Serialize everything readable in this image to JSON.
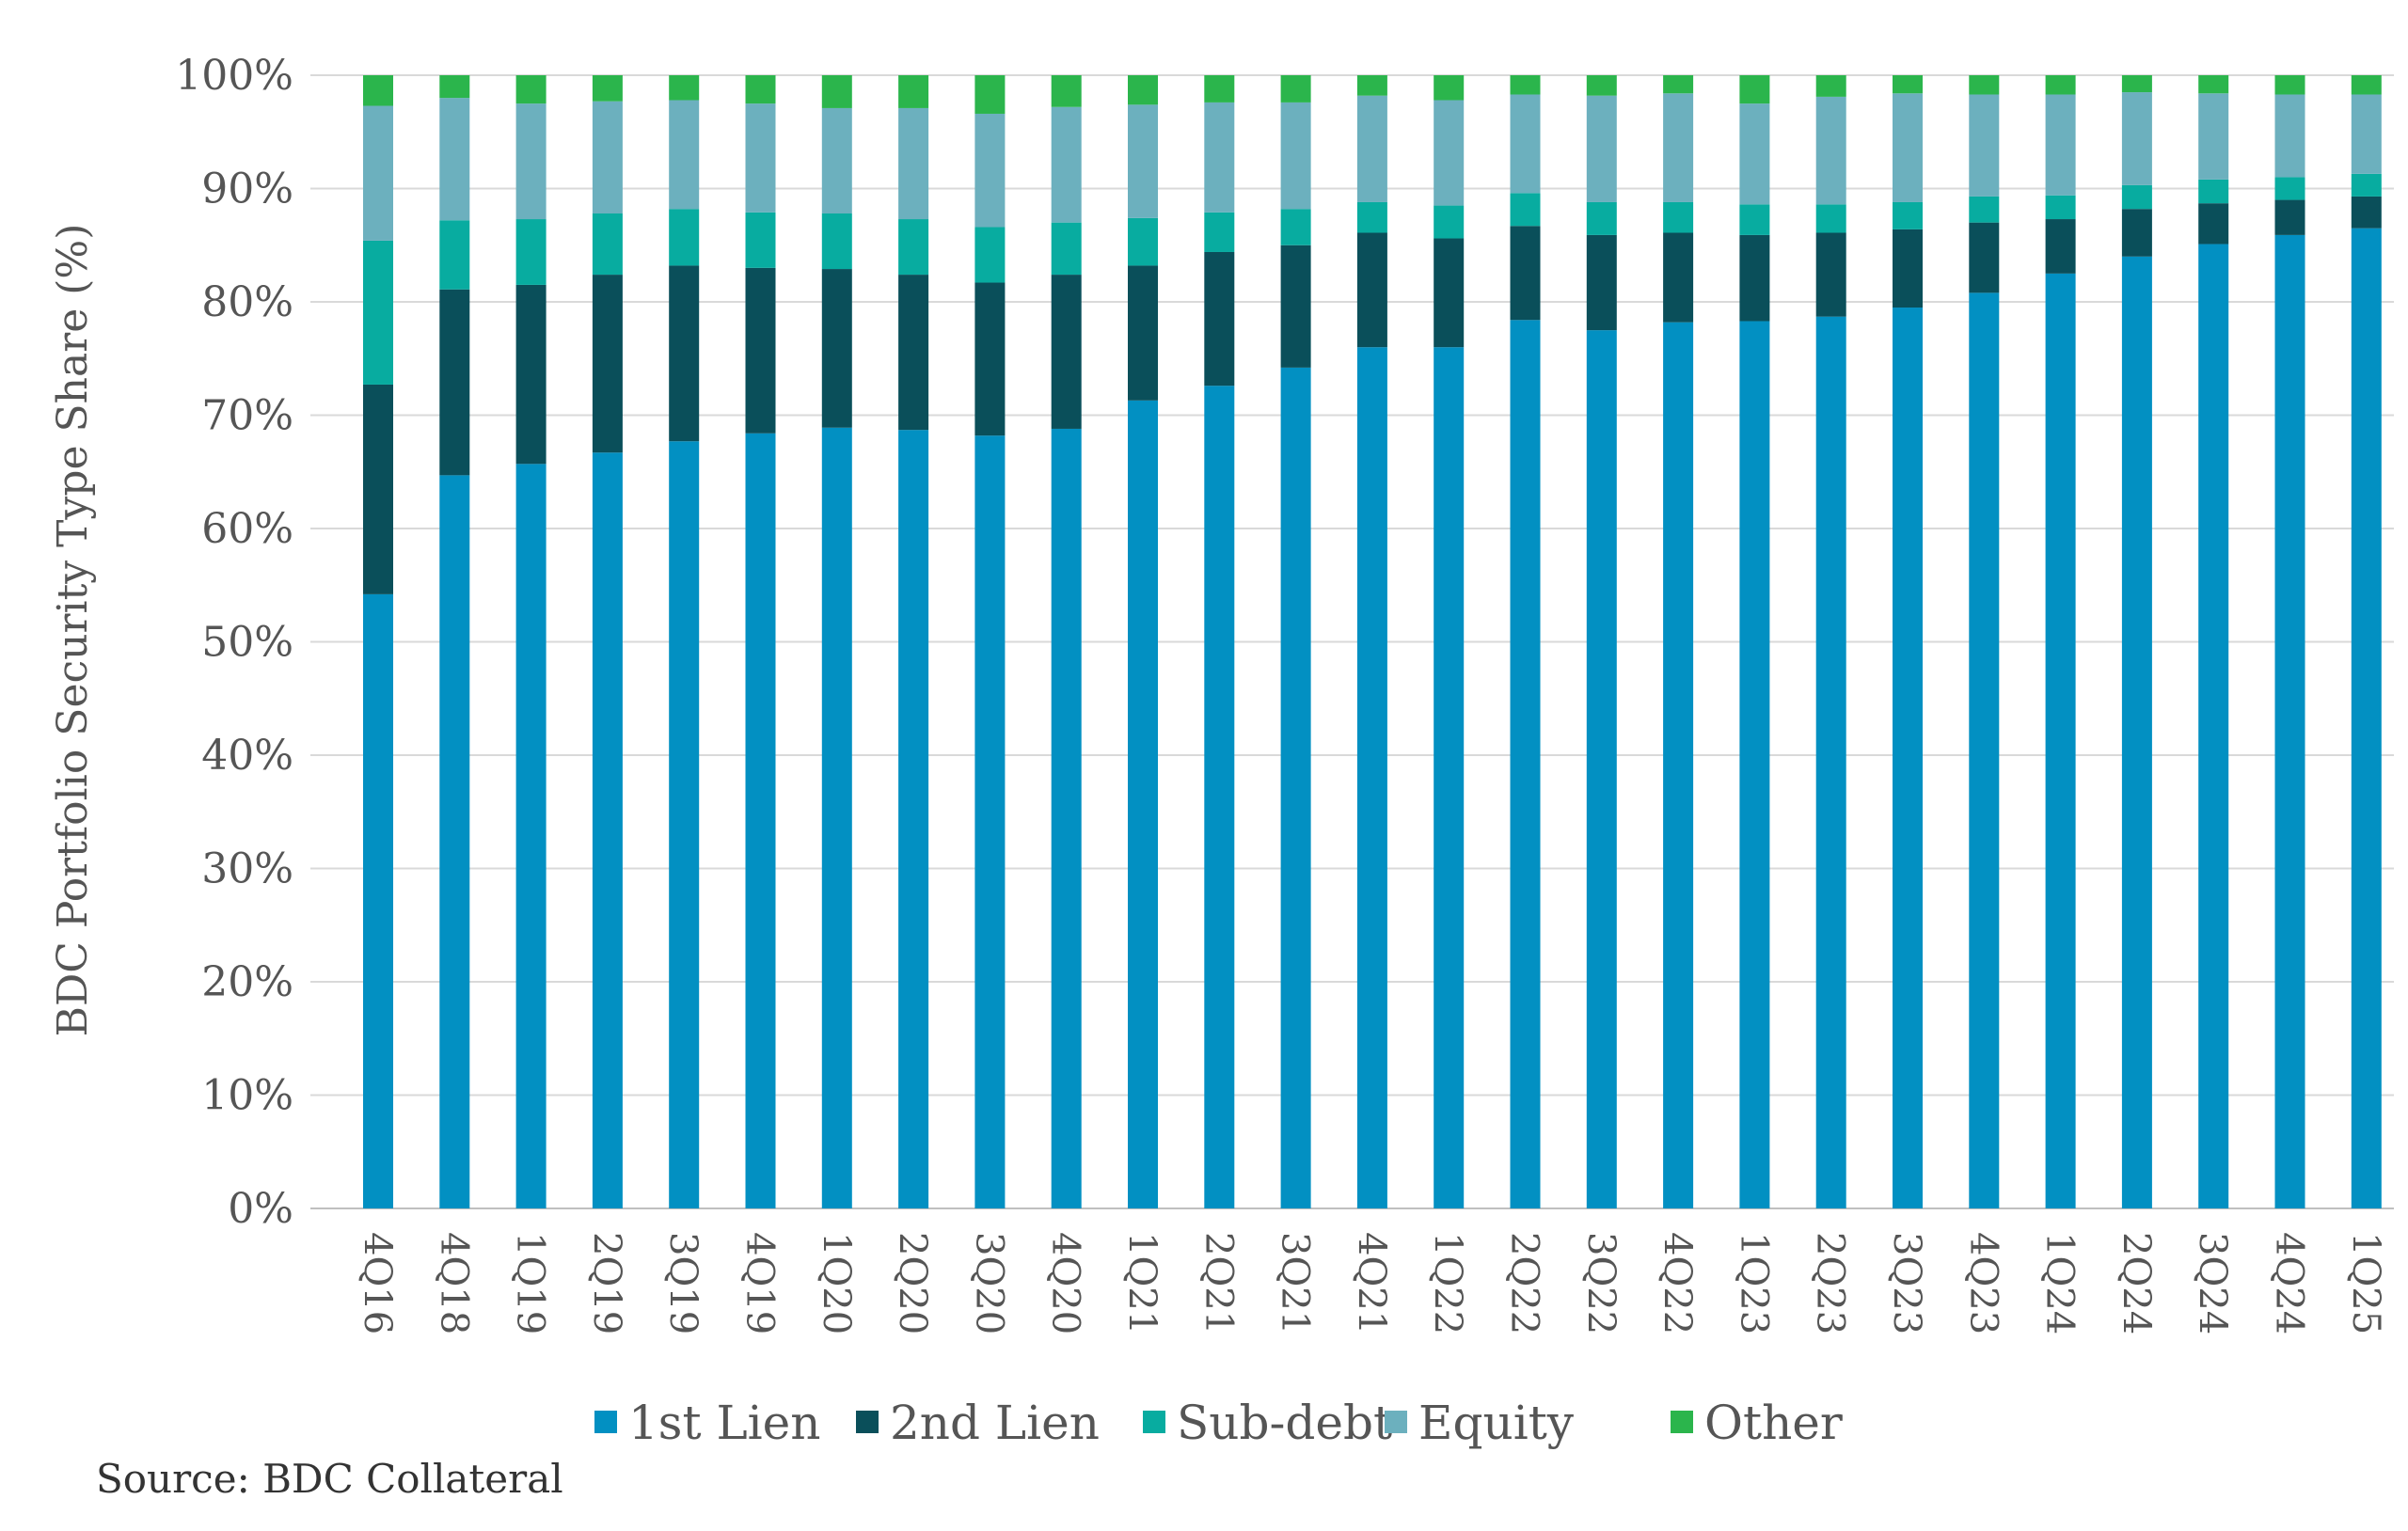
{
  "chart_data": {
    "type": "bar",
    "stacked": true,
    "title": "",
    "xlabel": "",
    "ylabel": "BDC Portfolio Security Type Share (%)",
    "ylim": [
      0,
      100
    ],
    "yticks": [
      "0%",
      "10%",
      "20%",
      "30%",
      "40%",
      "50%",
      "60%",
      "70%",
      "80%",
      "90%",
      "100%"
    ],
    "grid": true,
    "legend_position": "bottom",
    "categories": [
      "4Q16",
      "4Q18",
      "1Q19",
      "2Q19",
      "3Q19",
      "4Q19",
      "1Q20",
      "2Q20",
      "3Q20",
      "4Q20",
      "1Q21",
      "2Q21",
      "3Q21",
      "4Q21",
      "1Q22",
      "2Q22",
      "3Q22",
      "4Q22",
      "1Q23",
      "2Q23",
      "3Q23",
      "4Q23",
      "1Q24",
      "2Q24",
      "3Q24",
      "4Q24",
      "1Q25"
    ],
    "series": [
      {
        "name": "1st Lien",
        "color": "#0290c2",
        "values": [
          54.2,
          64.7,
          65.7,
          66.7,
          67.7,
          68.4,
          68.9,
          68.7,
          68.2,
          68.8,
          71.3,
          72.6,
          74.2,
          76.0,
          76.0,
          78.4,
          77.5,
          78.2,
          78.3,
          78.7,
          79.5,
          80.8,
          82.5,
          84.0,
          85.1,
          85.9,
          86.5
        ]
      },
      {
        "name": "2nd Lien",
        "color": "#0a4f5a",
        "values": [
          18.5,
          16.4,
          15.8,
          15.7,
          15.5,
          14.6,
          14.0,
          13.7,
          13.5,
          13.6,
          11.9,
          11.8,
          10.8,
          10.1,
          9.6,
          8.3,
          8.4,
          7.9,
          7.6,
          7.4,
          6.9,
          6.2,
          4.8,
          4.2,
          3.6,
          3.1,
          2.8
        ]
      },
      {
        "name": "Sub-debt",
        "color": "#08aca0",
        "values": [
          12.7,
          6.1,
          5.8,
          5.4,
          5.0,
          4.9,
          4.9,
          4.9,
          4.9,
          4.6,
          4.2,
          3.5,
          3.2,
          2.7,
          2.9,
          2.9,
          2.9,
          2.7,
          2.7,
          2.5,
          2.4,
          2.3,
          2.1,
          2.1,
          2.1,
          2.0,
          2.0
        ]
      },
      {
        "name": "Equity",
        "color": "#6cb0be",
        "values": [
          11.9,
          10.8,
          10.2,
          9.9,
          9.6,
          9.6,
          9.3,
          9.8,
          10.0,
          10.2,
          10.0,
          9.7,
          9.4,
          9.4,
          9.3,
          8.7,
          9.4,
          9.6,
          8.9,
          9.5,
          9.6,
          9.0,
          8.9,
          8.2,
          7.6,
          7.3,
          7.0
        ]
      },
      {
        "name": "Other",
        "color": "#2bb54c",
        "values": [
          2.7,
          2.0,
          2.5,
          2.3,
          2.2,
          2.5,
          2.9,
          2.9,
          3.4,
          2.8,
          2.6,
          2.4,
          2.4,
          1.8,
          2.2,
          1.7,
          1.8,
          1.6,
          2.5,
          1.9,
          1.6,
          1.7,
          1.7,
          1.5,
          1.6,
          1.7,
          1.7
        ]
      }
    ]
  },
  "source_note": "Source: BDC Collateral"
}
